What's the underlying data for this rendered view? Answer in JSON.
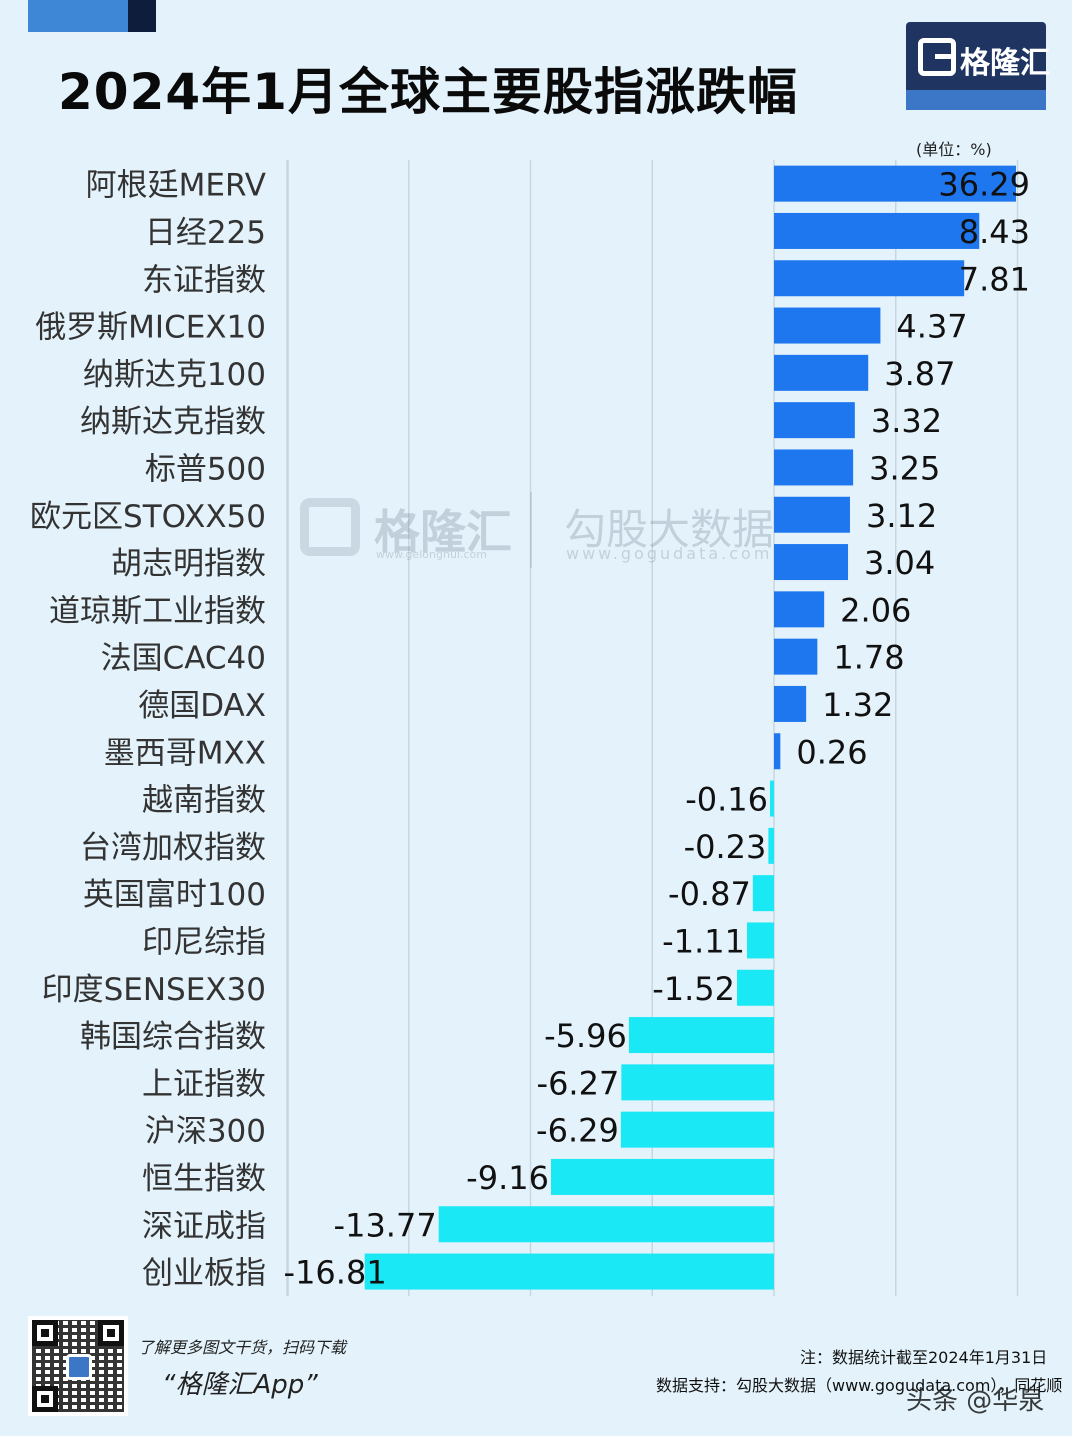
{
  "title": "2024年1月全球主要股指涨跌幅",
  "brand": {
    "logo_text": "格隆汇",
    "watermark_name": "格隆汇",
    "watermark_url": "www.gelonghui.com",
    "watermark_partner": "勾股大数据",
    "watermark_partner_url": "www.gogudata.com"
  },
  "unit_label": "(单位：%)",
  "colors": {
    "positive_bar": "#1f77f0",
    "negative_bar": "#1ae8f5",
    "background": "#e4f3fb",
    "gridline": "#c9d6df"
  },
  "chart_data": {
    "type": "bar",
    "orientation": "horizontal",
    "categories": [
      "阿根廷MERV",
      "日经225",
      "东证指数",
      "俄罗斯MICEX10",
      "纳斯达克100",
      "纳斯达克指数",
      "标普500",
      "欧元区STOXX50",
      "胡志明指数",
      "道琼斯工业指数",
      "法国CAC40",
      "德国DAX",
      "墨西哥MXX",
      "越南指数",
      "台湾加权指数",
      "英国富时100",
      "印尼综指",
      "印度SENSEX30",
      "韩国综合指数",
      "上证指数",
      "沪深300",
      "恒生指数",
      "深证成指",
      "创业板指"
    ],
    "values": [
      36.29,
      8.43,
      7.81,
      4.37,
      3.87,
      3.32,
      3.25,
      3.12,
      3.04,
      2.06,
      1.78,
      1.32,
      0.26,
      -0.16,
      -0.23,
      -0.87,
      -1.11,
      -1.52,
      -5.96,
      -6.27,
      -6.29,
      -9.16,
      -13.77,
      -16.81
    ],
    "labels": [
      "36.29",
      "8.43",
      "7.81",
      "4.37",
      "3.87",
      "3.32",
      "3.25",
      "3.12",
      "3.04",
      "2.06",
      "1.78",
      "1.32",
      "0.26",
      "-0.16",
      "-0.23",
      "-0.87",
      "-1.11",
      "-1.52",
      "-5.96",
      "-6.27",
      "-6.29",
      "-9.16",
      "-13.77",
      "-16.81"
    ],
    "xlim": [
      -20,
      10
    ],
    "axis_break": "阿根廷MERV bar truncated at right edge",
    "grid": "vertical",
    "unit": "%"
  },
  "footer": {
    "scan_hint": "了解更多图文干货，扫码下载",
    "app_name": "“格隆汇App”",
    "note": "注：数据统计截至2024年1月31日",
    "source": "数据支持：勾股大数据（www.gogudata.com），同花顺",
    "platform_watermark": "头条 @华泉"
  }
}
